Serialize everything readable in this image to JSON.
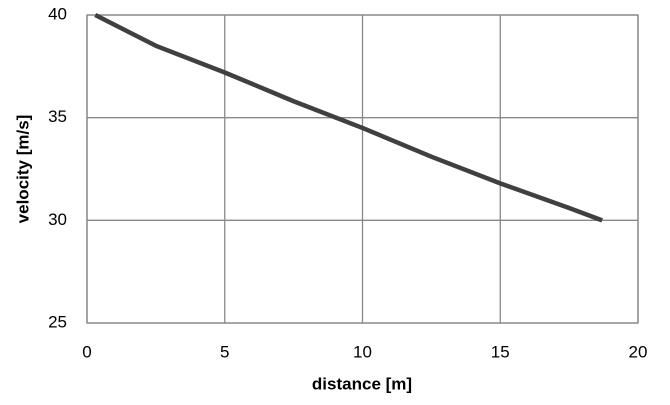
{
  "chart_data": {
    "type": "line",
    "xlabel": "distance [m]",
    "ylabel": "velocity [m/s]",
    "series": [
      {
        "name": "velocity",
        "color": "#404040",
        "x": [
          0.3,
          2.5,
          5,
          7.5,
          10,
          12.5,
          15,
          17.5,
          18.7
        ],
        "values": [
          40,
          38.5,
          37.2,
          35.8,
          34.5,
          33.1,
          31.8,
          30.6,
          30
        ]
      }
    ],
    "xlim": [
      0,
      20
    ],
    "xticks": [
      0,
      5,
      10,
      15,
      20
    ],
    "ylim": [
      25,
      40
    ],
    "yticks": [
      25,
      30,
      35,
      40
    ],
    "grid": true
  }
}
